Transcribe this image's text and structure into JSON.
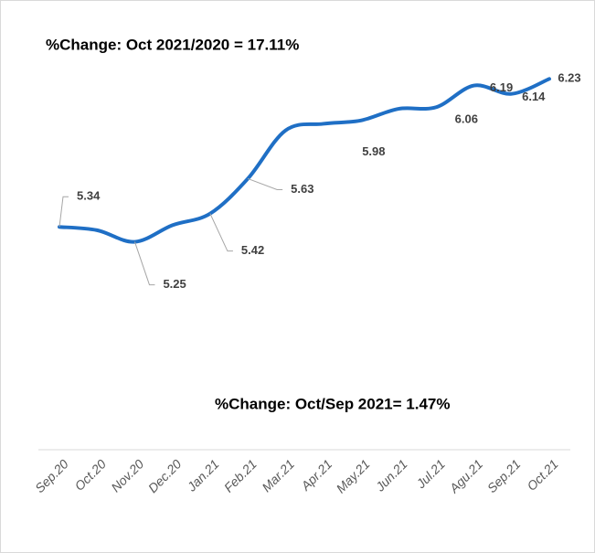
{
  "chart_data": {
    "type": "line",
    "annotations": [
      "%Change: Oct 2021/2020 = 17.11%",
      "%Change: Oct/Sep 2021= 1.47%"
    ],
    "categories": [
      "Sep.20",
      "Oct.20",
      "Nov.20",
      "Dec.20",
      "Jan.21",
      "Feb.21",
      "Mar.21",
      "Apr.21",
      "May.21",
      "Jun.21",
      "Jul.21",
      "Agu.21",
      "Sep.21",
      "Oct.21"
    ],
    "series": [
      {
        "name": null,
        "color": "#1f6fc5",
        "values": [
          5.34,
          5.32,
          5.25,
          5.35,
          5.42,
          5.63,
          5.92,
          5.96,
          5.98,
          6.05,
          6.06,
          6.19,
          6.14,
          6.23
        ],
        "value_labels": [
          "5.34",
          null,
          "5.25",
          null,
          "5.42",
          "5.63",
          null,
          null,
          "5.98",
          null,
          "6.06",
          "6.19",
          "6.14",
          "6.23"
        ]
      }
    ],
    "ylim": [
      4,
      6.6
    ]
  }
}
